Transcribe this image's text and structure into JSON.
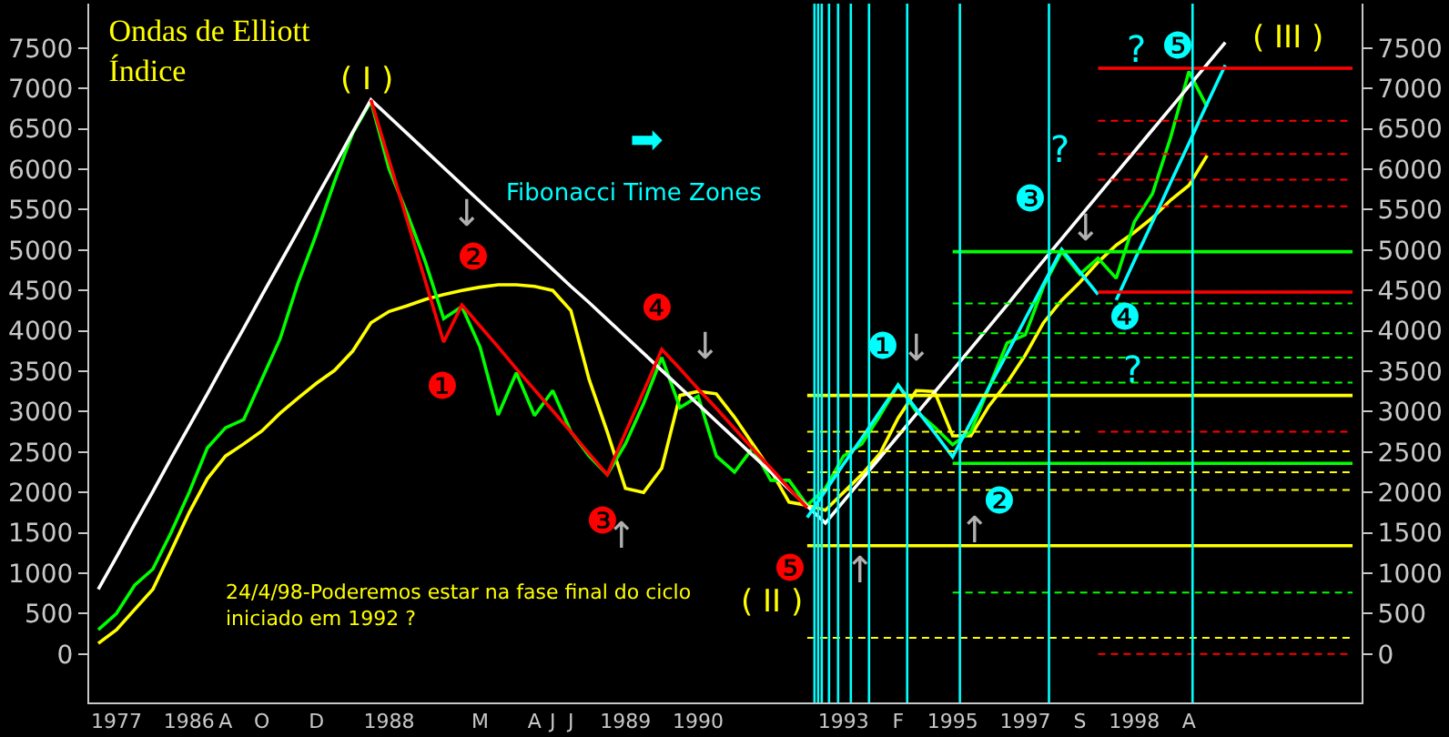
{
  "chart_data": {
    "type": "line",
    "title": "Ondas de Elliott\nÍndice",
    "categories": [
      null,
      "1977",
      null,
      null,
      null,
      "1986",
      null,
      "A",
      null,
      "O",
      null,
      null,
      "D",
      null,
      null,
      null,
      "1988",
      null,
      null,
      null,
      null,
      "M",
      null,
      null,
      "A",
      "J",
      "J",
      null,
      null,
      "1989",
      null,
      null,
      null,
      "1990",
      null,
      null,
      null,
      null,
      null,
      null,
      null,
      "1993",
      null,
      null,
      "F",
      null,
      null,
      "1995",
      null,
      null,
      null,
      "1997",
      null,
      null,
      "S",
      null,
      null,
      "1998",
      null,
      null,
      "A",
      null,
      null,
      null,
      null,
      null,
      null,
      null,
      null,
      null
    ],
    "ylim": [
      -600,
      8050
    ],
    "y2lim": [
      -600,
      8050
    ],
    "yticks": [
      0,
      500,
      1000,
      1500,
      2000,
      2500,
      3000,
      3500,
      4000,
      4500,
      5000,
      5500,
      6000,
      6500,
      7000,
      7500
    ],
    "y2ticks": [
      0,
      500,
      1000,
      1500,
      2000,
      2500,
      3000,
      3500,
      4000,
      4500,
      5000,
      5500,
      6000,
      6500,
      7000,
      7500
    ],
    "grid": false,
    "marker": "none",
    "series": [
      {
        "color": "#ffff00",
        "values": [
          130,
          300,
          550,
          800,
          1270,
          1750,
          2170,
          2450,
          2600,
          2760,
          2980,
          3170,
          3350,
          3510,
          3750,
          4100,
          4240,
          4310,
          4390,
          4450,
          4500,
          4540,
          4570,
          4570,
          4550,
          4500,
          4250,
          3400,
          2750,
          2050,
          2000,
          2300,
          3200,
          3250,
          3220,
          2930,
          2600,
          2270,
          1880,
          1840,
          1780,
          2000,
          2220,
          2480,
          2920,
          3260,
          3250,
          2700,
          2700,
          3070,
          3360,
          3700,
          4100,
          4380,
          4600,
          4850,
          5060,
          5220,
          5400,
          5620,
          5800,
          6170,
          null,
          null,
          null,
          null,
          null,
          null,
          null,
          null
        ]
      },
      {
        "color": "#00ff00",
        "values": [
          300,
          500,
          850,
          1050,
          1500,
          2000,
          2550,
          2800,
          2900,
          3400,
          3900,
          4600,
          5200,
          5850,
          6450,
          6840,
          6000,
          5450,
          4850,
          4150,
          4300,
          3800,
          2960,
          3480,
          2950,
          3260,
          2750,
          2450,
          2220,
          2600,
          3100,
          3670,
          3050,
          3190,
          2450,
          2250,
          2550,
          2150,
          2150,
          1840,
          2050,
          2450,
          2600,
          2950,
          3330,
          3000,
          2810,
          2590,
          2750,
          3300,
          3850,
          3950,
          4550,
          4980,
          4700,
          4900,
          4650,
          5350,
          5700,
          6400,
          7210,
          6770,
          null,
          null,
          null,
          null,
          null,
          null,
          null,
          null
        ]
      },
      {
        "color": "#ffffff",
        "values": [
          800,
          1200,
          1610,
          2010,
          2420,
          2820,
          3220,
          3630,
          4030,
          4440,
          4840,
          5240,
          5650,
          6050,
          6460,
          6860,
          6650,
          6440,
          6230,
          6020,
          5810,
          5600,
          5390,
          5180,
          4970,
          4760,
          4550,
          4350,
          4140,
          3930,
          3720,
          3510,
          3300,
          3090,
          2880,
          2670,
          2460,
          2250,
          2040,
          1830,
          1620,
          1890,
          2160,
          2430,
          2700,
          2970,
          3240,
          3510,
          3780,
          4050,
          4320,
          4600,
          4870,
          5140,
          5410,
          5680,
          5950,
          6220,
          6490,
          6760,
          7030,
          7300,
          7570,
          null,
          null,
          null,
          null,
          null,
          null,
          null
        ]
      },
      {
        "color": "#ff0000",
        "values": [
          null,
          null,
          null,
          null,
          null,
          null,
          null,
          null,
          null,
          null,
          null,
          null,
          null,
          null,
          null,
          6860,
          6110,
          5360,
          4610,
          3860,
          4320,
          4060,
          3800,
          3530,
          3270,
          3010,
          2750,
          2480,
          2220,
          2740,
          3250,
          3770,
          3530,
          3280,
          3040,
          2790,
          2540,
          2300,
          2050,
          1810,
          null,
          null,
          null,
          null,
          null,
          null,
          null,
          null,
          null,
          null,
          null,
          null,
          null,
          null,
          null,
          null,
          null,
          null,
          null,
          null,
          null,
          null,
          null,
          null,
          null,
          null,
          null,
          null,
          null,
          null
        ]
      },
      {
        "color": "#00ffff",
        "values": [
          null,
          null,
          null,
          null,
          null,
          null,
          null,
          null,
          null,
          null,
          null,
          null,
          null,
          null,
          null,
          null,
          null,
          null,
          null,
          null,
          null,
          null,
          null,
          null,
          null,
          null,
          null,
          null,
          null,
          null,
          null,
          null,
          null,
          null,
          null,
          null,
          null,
          null,
          null,
          1690,
          2020,
          2350,
          2670,
          3000,
          3330,
          3030,
          2740,
          2440,
          2870,
          3300,
          3720,
          4150,
          4580,
          5010,
          4730,
          4450,
          null,
          null,
          null,
          null,
          null,
          null,
          null,
          null,
          null,
          null,
          null,
          null,
          null,
          null
        ]
      },
      {
        "color": "#00ffff",
        "values": [
          null,
          null,
          null,
          null,
          null,
          null,
          null,
          null,
          null,
          null,
          null,
          null,
          null,
          null,
          null,
          null,
          null,
          null,
          null,
          null,
          null,
          null,
          null,
          null,
          null,
          null,
          null,
          null,
          null,
          null,
          null,
          null,
          null,
          null,
          null,
          null,
          null,
          null,
          null,
          null,
          null,
          null,
          null,
          null,
          null,
          null,
          null,
          null,
          null,
          null,
          null,
          null,
          null,
          null,
          null,
          null,
          4380,
          4870,
          5350,
          5840,
          6320,
          6810,
          7290,
          null,
          null,
          null,
          null,
          null,
          null,
          null
        ]
      },
      {
        "color": "#ff0000",
        "values": [
          null,
          null,
          null,
          null,
          null,
          null,
          null,
          null,
          null,
          null,
          null,
          null,
          null,
          null,
          null,
          null,
          null,
          null,
          null,
          null,
          null,
          null,
          null,
          null,
          null,
          null,
          null,
          null,
          null,
          null,
          null,
          null,
          null,
          null,
          null,
          null,
          null,
          null,
          null,
          null,
          null,
          null,
          null,
          null,
          null,
          null,
          null,
          null,
          null,
          null,
          null,
          null,
          null,
          null,
          null,
          7250,
          7250,
          7250,
          7250,
          7250,
          7250,
          7250,
          7250,
          7250,
          7250,
          7250,
          7250,
          7250,
          7250,
          7250
        ]
      },
      {
        "color": "#ff0000",
        "line_style": "dashed",
        "values": [
          null,
          null,
          null,
          null,
          null,
          null,
          null,
          null,
          null,
          null,
          null,
          null,
          null,
          null,
          null,
          null,
          null,
          null,
          null,
          null,
          null,
          null,
          null,
          null,
          null,
          null,
          null,
          null,
          null,
          null,
          null,
          null,
          null,
          null,
          null,
          null,
          null,
          null,
          null,
          null,
          null,
          null,
          null,
          null,
          null,
          null,
          null,
          null,
          null,
          null,
          null,
          null,
          null,
          null,
          null,
          6600,
          6600,
          6600,
          6600,
          6600,
          6600,
          6600,
          6600,
          6600,
          6600,
          6600,
          6600,
          6600,
          6600,
          6600
        ]
      },
      {
        "color": "#ff0000",
        "line_style": "dashed",
        "values": [
          null,
          null,
          null,
          null,
          null,
          null,
          null,
          null,
          null,
          null,
          null,
          null,
          null,
          null,
          null,
          null,
          null,
          null,
          null,
          null,
          null,
          null,
          null,
          null,
          null,
          null,
          null,
          null,
          null,
          null,
          null,
          null,
          null,
          null,
          null,
          null,
          null,
          null,
          null,
          null,
          null,
          null,
          null,
          null,
          null,
          null,
          null,
          null,
          null,
          null,
          null,
          null,
          null,
          null,
          null,
          6190,
          6190,
          6190,
          6190,
          6190,
          6190,
          6190,
          6190,
          6190,
          6190,
          6190,
          6190,
          6190,
          6190,
          6190
        ]
      },
      {
        "color": "#ff0000",
        "line_style": "dashed",
        "values": [
          null,
          null,
          null,
          null,
          null,
          null,
          null,
          null,
          null,
          null,
          null,
          null,
          null,
          null,
          null,
          null,
          null,
          null,
          null,
          null,
          null,
          null,
          null,
          null,
          null,
          null,
          null,
          null,
          null,
          null,
          null,
          null,
          null,
          null,
          null,
          null,
          null,
          null,
          null,
          null,
          null,
          null,
          null,
          null,
          null,
          null,
          null,
          null,
          null,
          null,
          null,
          null,
          null,
          null,
          null,
          5870,
          5870,
          5870,
          5870,
          5870,
          5870,
          5870,
          5870,
          5870,
          5870,
          5870,
          5870,
          5870,
          5870,
          5870
        ]
      },
      {
        "color": "#ff0000",
        "line_style": "dashed",
        "values": [
          null,
          null,
          null,
          null,
          null,
          null,
          null,
          null,
          null,
          null,
          null,
          null,
          null,
          null,
          null,
          null,
          null,
          null,
          null,
          null,
          null,
          null,
          null,
          null,
          null,
          null,
          null,
          null,
          null,
          null,
          null,
          null,
          null,
          null,
          null,
          null,
          null,
          null,
          null,
          null,
          null,
          null,
          null,
          null,
          null,
          null,
          null,
          null,
          null,
          null,
          null,
          null,
          null,
          null,
          null,
          5540,
          5540,
          5540,
          5540,
          5540,
          5540,
          5540,
          5540,
          5540,
          5540,
          5540,
          5540,
          5540,
          5540,
          5540
        ]
      },
      {
        "color": "#ff0000",
        "values": [
          null,
          null,
          null,
          null,
          null,
          null,
          null,
          null,
          null,
          null,
          null,
          null,
          null,
          null,
          null,
          null,
          null,
          null,
          null,
          null,
          null,
          null,
          null,
          null,
          null,
          null,
          null,
          null,
          null,
          null,
          null,
          null,
          null,
          null,
          null,
          null,
          null,
          null,
          null,
          null,
          null,
          null,
          null,
          null,
          null,
          null,
          null,
          null,
          null,
          null,
          null,
          null,
          null,
          null,
          null,
          4480,
          4480,
          4480,
          4480,
          4480,
          4480,
          4480,
          4480,
          4480,
          4480,
          4480,
          4480,
          4480,
          4480,
          4480
        ]
      },
      {
        "color": "#ff0000",
        "line_style": "dashed",
        "values": [
          null,
          null,
          null,
          null,
          null,
          null,
          null,
          null,
          null,
          null,
          null,
          null,
          null,
          null,
          null,
          null,
          null,
          null,
          null,
          null,
          null,
          null,
          null,
          null,
          null,
          null,
          null,
          null,
          null,
          null,
          null,
          null,
          null,
          null,
          null,
          null,
          null,
          null,
          null,
          null,
          null,
          null,
          null,
          null,
          null,
          null,
          null,
          null,
          null,
          null,
          null,
          null,
          null,
          null,
          null,
          2750,
          2750,
          2750,
          2750,
          2750,
          2750,
          2750,
          2750,
          2750,
          2750,
          2750,
          2750,
          2750,
          2750,
          2750
        ]
      },
      {
        "color": "#ff0000",
        "line_style": "dashed",
        "values": [
          null,
          null,
          null,
          null,
          null,
          null,
          null,
          null,
          null,
          null,
          null,
          null,
          null,
          null,
          null,
          null,
          null,
          null,
          null,
          null,
          null,
          null,
          null,
          null,
          null,
          null,
          null,
          null,
          null,
          null,
          null,
          null,
          null,
          null,
          null,
          null,
          null,
          null,
          null,
          null,
          null,
          null,
          null,
          null,
          null,
          null,
          null,
          null,
          null,
          null,
          null,
          null,
          null,
          null,
          null,
          0,
          0,
          0,
          0,
          0,
          0,
          0,
          0,
          0,
          0,
          0,
          0,
          0,
          0,
          0
        ]
      },
      {
        "color": "#00ff00",
        "values": [
          null,
          null,
          null,
          null,
          null,
          null,
          null,
          null,
          null,
          null,
          null,
          null,
          null,
          null,
          null,
          null,
          null,
          null,
          null,
          null,
          null,
          null,
          null,
          null,
          null,
          null,
          null,
          null,
          null,
          null,
          null,
          null,
          null,
          null,
          null,
          null,
          null,
          null,
          null,
          null,
          null,
          null,
          null,
          null,
          null,
          null,
          null,
          4980,
          4980,
          4980,
          4980,
          4980,
          4980,
          4980,
          4980,
          4980,
          4980,
          4980,
          4980,
          4980,
          4980,
          4980,
          4980,
          4980,
          4980,
          4980,
          4980,
          4980,
          4980,
          4980
        ]
      },
      {
        "color": "#00ff00",
        "line_style": "dashed",
        "values": [
          null,
          null,
          null,
          null,
          null,
          null,
          null,
          null,
          null,
          null,
          null,
          null,
          null,
          null,
          null,
          null,
          null,
          null,
          null,
          null,
          null,
          null,
          null,
          null,
          null,
          null,
          null,
          null,
          null,
          null,
          null,
          null,
          null,
          null,
          null,
          null,
          null,
          null,
          null,
          null,
          null,
          null,
          null,
          null,
          null,
          null,
          null,
          4340,
          4340,
          4340,
          4340,
          4340,
          4340,
          4340,
          4340,
          4340,
          4340,
          4340,
          4340,
          4340,
          4340,
          4340,
          4340,
          4340,
          4340,
          4340,
          4340,
          4340,
          4340,
          4340
        ]
      },
      {
        "color": "#00ff00",
        "line_style": "dashed",
        "values": [
          null,
          null,
          null,
          null,
          null,
          null,
          null,
          null,
          null,
          null,
          null,
          null,
          null,
          null,
          null,
          null,
          null,
          null,
          null,
          null,
          null,
          null,
          null,
          null,
          null,
          null,
          null,
          null,
          null,
          null,
          null,
          null,
          null,
          null,
          null,
          null,
          null,
          null,
          null,
          null,
          null,
          null,
          null,
          null,
          null,
          null,
          null,
          3970,
          3970,
          3970,
          3970,
          3970,
          3970,
          3970,
          3970,
          3970,
          3970,
          3970,
          3970,
          3970,
          3970,
          3970,
          3970,
          3970,
          3970,
          3970,
          3970,
          3970,
          3970,
          3970
        ]
      },
      {
        "color": "#00ff00",
        "line_style": "dashed",
        "values": [
          null,
          null,
          null,
          null,
          null,
          null,
          null,
          null,
          null,
          null,
          null,
          null,
          null,
          null,
          null,
          null,
          null,
          null,
          null,
          null,
          null,
          null,
          null,
          null,
          null,
          null,
          null,
          null,
          null,
          null,
          null,
          null,
          null,
          null,
          null,
          null,
          null,
          null,
          null,
          null,
          null,
          null,
          null,
          null,
          null,
          null,
          null,
          3670,
          3670,
          3670,
          3670,
          3670,
          3670,
          3670,
          3670,
          3670,
          3670,
          3670,
          3670,
          3670,
          3670,
          3670,
          3670,
          3670,
          3670,
          3670,
          3670,
          3670,
          3670,
          3670
        ]
      },
      {
        "color": "#00ff00",
        "line_style": "dashed",
        "values": [
          null,
          null,
          null,
          null,
          null,
          null,
          null,
          null,
          null,
          null,
          null,
          null,
          null,
          null,
          null,
          null,
          null,
          null,
          null,
          null,
          null,
          null,
          null,
          null,
          null,
          null,
          null,
          null,
          null,
          null,
          null,
          null,
          null,
          null,
          null,
          null,
          null,
          null,
          null,
          null,
          null,
          null,
          null,
          null,
          null,
          null,
          null,
          3360,
          3360,
          3360,
          3360,
          3360,
          3360,
          3360,
          3360,
          3360,
          3360,
          3360,
          3360,
          3360,
          3360,
          3360,
          3360,
          3360,
          3360,
          3360,
          3360,
          3360,
          3360,
          3360
        ]
      },
      {
        "color": "#00ff00",
        "values": [
          null,
          null,
          null,
          null,
          null,
          null,
          null,
          null,
          null,
          null,
          null,
          null,
          null,
          null,
          null,
          null,
          null,
          null,
          null,
          null,
          null,
          null,
          null,
          null,
          null,
          null,
          null,
          null,
          null,
          null,
          null,
          null,
          null,
          null,
          null,
          null,
          null,
          null,
          null,
          null,
          null,
          null,
          null,
          null,
          null,
          null,
          null,
          2360,
          2360,
          2360,
          2360,
          2360,
          2360,
          2360,
          2360,
          2360,
          2360,
          2360,
          2360,
          2360,
          2360,
          2360,
          2360,
          2360,
          2360,
          2360,
          2360,
          2360,
          2360,
          2360
        ]
      },
      {
        "color": "#00ff00",
        "line_style": "dashed",
        "values": [
          null,
          null,
          null,
          null,
          null,
          null,
          null,
          null,
          null,
          null,
          null,
          null,
          null,
          null,
          null,
          null,
          null,
          null,
          null,
          null,
          null,
          null,
          null,
          null,
          null,
          null,
          null,
          null,
          null,
          null,
          null,
          null,
          null,
          null,
          null,
          null,
          null,
          null,
          null,
          null,
          null,
          null,
          null,
          null,
          null,
          null,
          null,
          760,
          760,
          760,
          760,
          760,
          760,
          760,
          760,
          760,
          760,
          760,
          760,
          760,
          760,
          760,
          760,
          760,
          760,
          760,
          760,
          760,
          760,
          760
        ]
      },
      {
        "color": "#ffff00",
        "values": [
          null,
          null,
          null,
          null,
          null,
          null,
          null,
          null,
          null,
          null,
          null,
          null,
          null,
          null,
          null,
          null,
          null,
          null,
          null,
          null,
          null,
          null,
          null,
          null,
          null,
          null,
          null,
          null,
          null,
          null,
          null,
          null,
          null,
          null,
          null,
          null,
          null,
          null,
          null,
          3200,
          3200,
          3200,
          3200,
          3200,
          3200,
          3200,
          3200,
          3200,
          3200,
          3200,
          3200,
          3200,
          3200,
          3200,
          3200,
          3200,
          3200,
          3200,
          3200,
          3200,
          3200,
          3200,
          3200,
          3200,
          3200,
          3200,
          3200,
          3200,
          3200,
          3200
        ]
      },
      {
        "color": "#ffff00",
        "line_style": "dashed",
        "values": [
          null,
          null,
          null,
          null,
          null,
          null,
          null,
          null,
          null,
          null,
          null,
          null,
          null,
          null,
          null,
          null,
          null,
          null,
          null,
          null,
          null,
          null,
          null,
          null,
          null,
          null,
          null,
          null,
          null,
          null,
          null,
          null,
          null,
          null,
          null,
          null,
          null,
          null,
          null,
          2750,
          2750,
          2750,
          2750,
          2750,
          2750,
          2750,
          2750,
          2750,
          2750,
          2750,
          2750,
          2750,
          2750,
          2750,
          2750,
          null,
          null,
          null,
          null,
          null,
          null,
          null,
          null,
          null,
          null,
          null,
          null,
          null,
          null,
          null
        ]
      },
      {
        "color": "#ffff00",
        "line_style": "dashed",
        "values": [
          null,
          null,
          null,
          null,
          null,
          null,
          null,
          null,
          null,
          null,
          null,
          null,
          null,
          null,
          null,
          null,
          null,
          null,
          null,
          null,
          null,
          null,
          null,
          null,
          null,
          null,
          null,
          null,
          null,
          null,
          null,
          null,
          null,
          null,
          null,
          null,
          null,
          null,
          null,
          2510,
          2510,
          2510,
          2510,
          2510,
          2510,
          2510,
          2510,
          2510,
          2510,
          2510,
          2510,
          2510,
          2510,
          2510,
          2510,
          2510,
          2510,
          2510,
          2510,
          2510,
          2510,
          2510,
          2510,
          2510,
          2510,
          2510,
          2510,
          2510,
          2510,
          2510
        ]
      },
      {
        "color": "#ffff00",
        "line_style": "dashed",
        "values": [
          null,
          null,
          null,
          null,
          null,
          null,
          null,
          null,
          null,
          null,
          null,
          null,
          null,
          null,
          null,
          null,
          null,
          null,
          null,
          null,
          null,
          null,
          null,
          null,
          null,
          null,
          null,
          null,
          null,
          null,
          null,
          null,
          null,
          null,
          null,
          null,
          null,
          null,
          null,
          2250,
          2250,
          2250,
          2250,
          2250,
          2250,
          2250,
          2250,
          2250,
          2250,
          2250,
          2250,
          2250,
          2250,
          2250,
          2250,
          2250,
          2250,
          2250,
          2250,
          2250,
          2250,
          2250,
          2250,
          2250,
          2250,
          2250,
          2250,
          2250,
          2250,
          2250
        ]
      },
      {
        "color": "#ffff00",
        "line_style": "dashed",
        "values": [
          null,
          null,
          null,
          null,
          null,
          null,
          null,
          null,
          null,
          null,
          null,
          null,
          null,
          null,
          null,
          null,
          null,
          null,
          null,
          null,
          null,
          null,
          null,
          null,
          null,
          null,
          null,
          null,
          null,
          null,
          null,
          null,
          null,
          null,
          null,
          null,
          null,
          null,
          null,
          2030,
          2030,
          2030,
          2030,
          2030,
          2030,
          2030,
          2030,
          2030,
          2030,
          2030,
          2030,
          2030,
          2030,
          2030,
          2030,
          2030,
          2030,
          2030,
          2030,
          2030,
          2030,
          2030,
          2030,
          2030,
          2030,
          2030,
          2030,
          2030,
          2030,
          2030
        ]
      },
      {
        "color": "#ffff00",
        "values": [
          null,
          null,
          null,
          null,
          null,
          null,
          null,
          null,
          null,
          null,
          null,
          null,
          null,
          null,
          null,
          null,
          null,
          null,
          null,
          null,
          null,
          null,
          null,
          null,
          null,
          null,
          null,
          null,
          null,
          null,
          null,
          null,
          null,
          null,
          null,
          null,
          null,
          null,
          null,
          1340,
          1340,
          1340,
          1340,
          1340,
          1340,
          1340,
          1340,
          1340,
          1340,
          1340,
          1340,
          1340,
          1340,
          1340,
          1340,
          1340,
          1340,
          1340,
          1340,
          1340,
          1340,
          1340,
          1340,
          1340,
          1340,
          1340,
          1340,
          1340,
          1340,
          1340
        ]
      },
      {
        "color": "#ffff00",
        "line_style": "dashed",
        "values": [
          null,
          null,
          null,
          null,
          null,
          null,
          null,
          null,
          null,
          null,
          null,
          null,
          null,
          null,
          null,
          null,
          null,
          null,
          null,
          null,
          null,
          null,
          null,
          null,
          null,
          null,
          null,
          null,
          null,
          null,
          null,
          null,
          null,
          null,
          null,
          null,
          null,
          null,
          null,
          200,
          200,
          200,
          200,
          200,
          200,
          200,
          200,
          200,
          200,
          200,
          200,
          200,
          200,
          200,
          200,
          200,
          200,
          200,
          200,
          200,
          200,
          200,
          200,
          200,
          200,
          200,
          200,
          200,
          200,
          200
        ]
      }
    ],
    "annotations": [
      "Fibonacci Time Zones",
      "➡",
      "24/4/98-Poderemos estar na fase final do ciclo\niniciado em 1992 ?",
      "( I )",
      "( II )",
      "( III )",
      "❶",
      "❷",
      "❸",
      "❹",
      "❺",
      "❶",
      "❷",
      "❸",
      "❹",
      "❺",
      "?",
      "?",
      "?",
      "↓",
      "↓",
      "↑",
      "↑",
      "↓",
      "↑",
      "↓"
    ]
  }
}
